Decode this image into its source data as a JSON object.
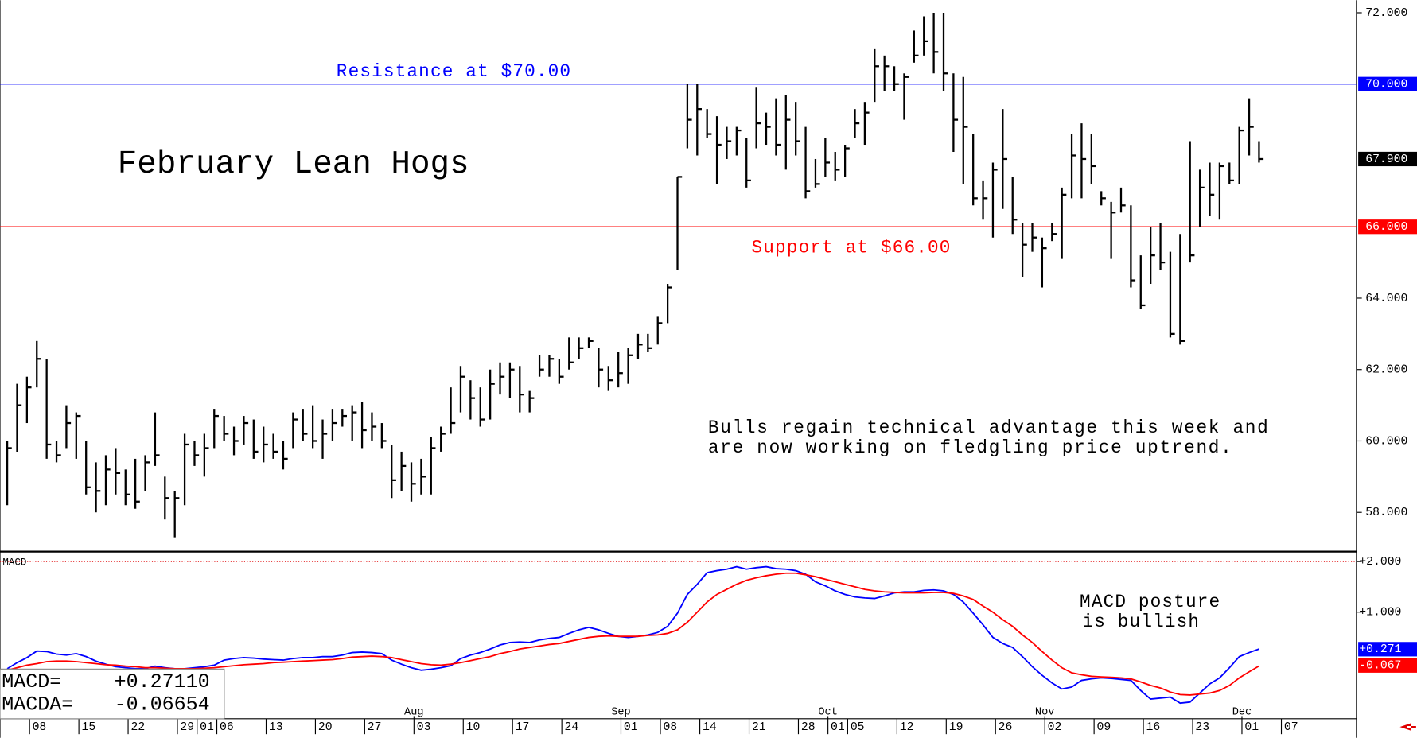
{
  "chart_data": [
    {
      "type": "ohlc",
      "title": "February Lean Hogs",
      "color": "#000000",
      "high": [
        60,
        61.6,
        61.8,
        62.8,
        62.3,
        60.0,
        61.0,
        60.8,
        60.0,
        59.4,
        59.6,
        59.8,
        59.2,
        59.5,
        59.6,
        60.8,
        59.0,
        58.6,
        60.2,
        60.0,
        60.2,
        60.9,
        60.7,
        60.4,
        60.7,
        60.6,
        60.4,
        60.2,
        60.0,
        60.8,
        60.9,
        61.0,
        60.6,
        60.9,
        60.9,
        61.0,
        61.1,
        60.8,
        60.5,
        59.9,
        59.7,
        59.4,
        59.5,
        60.1,
        60.4,
        61.5,
        62.1,
        61.7,
        61.5,
        62.0,
        62.2,
        62.2,
        62.1,
        61.4,
        62.4,
        62.4,
        62.3,
        62.9,
        62.9,
        62.9,
        62.6,
        62.1,
        62.5,
        62.6,
        63.0,
        63.0,
        63.5,
        64.4,
        67.4,
        70.0,
        70.0,
        69.3,
        69.1,
        68.8,
        68.8,
        68.5,
        69.9,
        69.2,
        69.6,
        69.7,
        69.5,
        68.8,
        67.9,
        68.5,
        68.1,
        68.3,
        69.3,
        69.5,
        71.0,
        70.8,
        70.5,
        70.3,
        71.5,
        71.9,
        72.0,
        72.0,
        70.3,
        70.2,
        68.6,
        67.3,
        67.8,
        69.3,
        67.4,
        66.1,
        66.1,
        65.7,
        66.1,
        67.1,
        68.6,
        68.9,
        68.6,
        67.0,
        66.7,
        67.1,
        66.6,
        65.2,
        66.0,
        66.1,
        65.3,
        65.8,
        68.4,
        67.6,
        67.8,
        67.8,
        67.8,
        68.8,
        69.6,
        68.4
      ],
      "low": [
        58.2,
        59.7,
        60.5,
        61.5,
        59.5,
        59.4,
        59.8,
        59.5,
        58.5,
        58.0,
        58.2,
        58.5,
        58.2,
        58.1,
        58.6,
        59.3,
        57.8,
        57.3,
        58.2,
        59.3,
        59.0,
        59.8,
        60.0,
        59.6,
        59.9,
        59.5,
        59.4,
        59.5,
        59.2,
        59.8,
        60.0,
        59.8,
        59.5,
        60.0,
        60.4,
        60.0,
        59.8,
        60.0,
        59.8,
        58.4,
        58.6,
        58.3,
        58.5,
        58.5,
        59.7,
        60.2,
        60.8,
        60.6,
        60.4,
        60.6,
        61.3,
        61.2,
        60.8,
        60.8,
        61.8,
        61.8,
        61.6,
        62.0,
        62.3,
        62.6,
        61.5,
        61.4,
        61.5,
        61.6,
        62.3,
        62.5,
        62.7,
        63.3,
        64.8,
        68.2,
        68.0,
        68.5,
        67.2,
        67.9,
        68.0,
        67.1,
        68.2,
        68.3,
        68.0,
        67.6,
        68.0,
        66.8,
        67.1,
        67.4,
        67.3,
        67.4,
        68.5,
        68.3,
        69.5,
        69.8,
        69.8,
        69.0,
        70.6,
        70.8,
        70.3,
        69.8,
        68.1,
        67.2,
        66.6,
        66.2,
        65.7,
        66.5,
        65.8,
        64.6,
        65.3,
        64.3,
        65.6,
        65.1,
        66.8,
        66.8,
        67.2,
        66.6,
        65.1,
        66.4,
        64.3,
        63.7,
        64.4,
        64.8,
        62.9,
        62.7,
        65.0,
        66.0,
        66.3,
        66.2,
        67.2,
        67.2,
        68.0,
        67.8
      ],
      "close": [
        59.8,
        61.0,
        61.5,
        62.3,
        59.9,
        59.6,
        60.5,
        60.7,
        58.7,
        58.6,
        59.2,
        59.1,
        58.5,
        58.3,
        59.4,
        59.6,
        58.4,
        58.4,
        59.9,
        59.6,
        59.8,
        60.7,
        60.2,
        60.0,
        60.5,
        59.7,
        59.9,
        59.7,
        59.5,
        60.6,
        60.2,
        60.0,
        60.2,
        60.5,
        60.7,
        60.8,
        60.3,
        60.4,
        60.0,
        58.9,
        59.3,
        58.8,
        59.0,
        59.8,
        60.2,
        60.5,
        61.8,
        61.2,
        60.6,
        61.6,
        61.8,
        62.0,
        61.3,
        61.2,
        62.0,
        62.3,
        61.8,
        62.2,
        62.6,
        62.8,
        62.0,
        61.7,
        61.9,
        62.4,
        62.7,
        62.6,
        63.3,
        64.3,
        67.4,
        69.0,
        69.3,
        68.6,
        68.3,
        68.4,
        68.7,
        67.3,
        68.9,
        68.8,
        68.3,
        69.0,
        68.4,
        67.0,
        67.2,
        67.8,
        67.6,
        68.2,
        68.9,
        69.2,
        70.5,
        70.5,
        70.0,
        70.2,
        70.8,
        71.2,
        70.9,
        70.3,
        69.0,
        68.8,
        66.8,
        66.8,
        67.6,
        67.9,
        66.2,
        65.5,
        65.7,
        65.4,
        65.8,
        66.9,
        68.0,
        67.9,
        67.7,
        66.8,
        66.4,
        66.6,
        64.5,
        63.8,
        65.2,
        65.0,
        63.0,
        62.8,
        65.2,
        67.1,
        66.9,
        67.7,
        67.3,
        68.7,
        68.8,
        67.9
      ],
      "last_close_label": "67.900",
      "ylim": [
        56.9,
        72.35
      ],
      "yticks": [
        {
          "value": 58,
          "label": "58.000"
        },
        {
          "value": 60,
          "label": "60.000"
        },
        {
          "value": 62,
          "label": "62.000"
        },
        {
          "value": 64,
          "label": "64.000"
        },
        {
          "value": 72,
          "label": "72.000"
        }
      ],
      "levels": [
        {
          "value": 70,
          "label": "Resistance at $70.00",
          "axis_label": "70.000",
          "color": "#0000ff"
        },
        {
          "value": 66,
          "label": "Support at $66.00",
          "axis_label": "66.000",
          "color": "#ff0000"
        }
      ],
      "annotation": [
        "Bulls regain technical advantage this week and",
        "are now working on fledgling price uptrend."
      ],
      "xticks": [
        {
          "value": 3,
          "label": "08"
        },
        {
          "value": 8,
          "label": "15"
        },
        {
          "value": 13,
          "label": "22"
        },
        {
          "value": 18,
          "label": "29"
        },
        {
          "value": 20,
          "label": "01"
        },
        {
          "value": 22,
          "label": "06"
        },
        {
          "value": 27,
          "label": "13"
        },
        {
          "value": 32,
          "label": "20"
        },
        {
          "value": 37,
          "label": "27"
        },
        {
          "value": 42,
          "label": "03"
        },
        {
          "value": 47,
          "label": "10"
        },
        {
          "value": 52,
          "label": "17"
        },
        {
          "value": 57,
          "label": "24"
        },
        {
          "value": 63,
          "label": "01"
        },
        {
          "value": 67,
          "label": "08"
        },
        {
          "value": 71,
          "label": "14"
        },
        {
          "value": 76,
          "label": "21"
        },
        {
          "value": 81,
          "label": "28"
        },
        {
          "value": 84,
          "label": "01"
        },
        {
          "value": 86,
          "label": "05"
        },
        {
          "value": 91,
          "label": "12"
        },
        {
          "value": 96,
          "label": "19"
        },
        {
          "value": 101,
          "label": "26"
        },
        {
          "value": 106,
          "label": "02"
        },
        {
          "value": 111,
          "label": "09"
        },
        {
          "value": 116,
          "label": "16"
        },
        {
          "value": 121,
          "label": "23"
        },
        {
          "value": 126,
          "label": "01"
        },
        {
          "value": 130,
          "label": "07"
        }
      ],
      "month_ticks": [
        {
          "value": 42,
          "label": "Aug"
        },
        {
          "value": 63,
          "label": "Sep"
        },
        {
          "value": 84,
          "label": "Oct"
        },
        {
          "value": 106,
          "label": "Nov"
        },
        {
          "value": 126,
          "label": "Dec"
        }
      ]
    },
    {
      "type": "macd",
      "title": "MACD",
      "series": [
        {
          "name": "MACD",
          "color": "#0000ff",
          "last_label": "+0.271",
          "values": [
            -0.12,
            0.0,
            0.1,
            0.23,
            0.22,
            0.17,
            0.15,
            0.18,
            0.12,
            0.03,
            -0.03,
            -0.08,
            -0.1,
            -0.12,
            -0.12,
            -0.07,
            -0.1,
            -0.12,
            -0.12,
            -0.1,
            -0.08,
            -0.05,
            0.05,
            0.08,
            0.1,
            0.09,
            0.07,
            0.06,
            0.05,
            0.08,
            0.1,
            0.1,
            0.12,
            0.12,
            0.15,
            0.2,
            0.21,
            0.2,
            0.18,
            0.05,
            -0.03,
            -0.1,
            -0.15,
            -0.13,
            -0.1,
            -0.06,
            0.08,
            0.15,
            0.2,
            0.27,
            0.35,
            0.4,
            0.41,
            0.4,
            0.45,
            0.48,
            0.5,
            0.58,
            0.65,
            0.7,
            0.65,
            0.58,
            0.52,
            0.5,
            0.52,
            0.55,
            0.6,
            0.72,
            0.98,
            1.35,
            1.55,
            1.78,
            1.82,
            1.85,
            1.9,
            1.85,
            1.88,
            1.9,
            1.86,
            1.85,
            1.82,
            1.75,
            1.6,
            1.52,
            1.42,
            1.35,
            1.3,
            1.28,
            1.27,
            1.32,
            1.38,
            1.4,
            1.4,
            1.43,
            1.44,
            1.42,
            1.35,
            1.2,
            0.98,
            0.75,
            0.5,
            0.38,
            0.3,
            0.12,
            -0.08,
            -0.25,
            -0.4,
            -0.52,
            -0.48,
            -0.35,
            -0.32,
            -0.3,
            -0.31,
            -0.33,
            -0.35,
            -0.55,
            -0.72,
            -0.7,
            -0.68,
            -0.8,
            -0.78,
            -0.6,
            -0.42,
            -0.3,
            -0.1,
            0.12,
            0.2,
            0.2711
          ]
        },
        {
          "name": "MACDA",
          "color": "#ff0000",
          "last_label": "-0.067",
          "values": [
            -0.15,
            -0.1,
            -0.05,
            -0.02,
            0.02,
            0.03,
            0.03,
            0.02,
            0.0,
            -0.02,
            -0.04,
            -0.05,
            -0.07,
            -0.08,
            -0.1,
            -0.1,
            -0.11,
            -0.12,
            -0.12,
            -0.12,
            -0.11,
            -0.1,
            -0.08,
            -0.06,
            -0.04,
            -0.03,
            -0.02,
            0.0,
            0.01,
            0.02,
            0.03,
            0.04,
            0.05,
            0.06,
            0.08,
            0.11,
            0.12,
            0.13,
            0.12,
            0.1,
            0.06,
            0.02,
            -0.02,
            -0.04,
            -0.05,
            -0.03,
            0.0,
            0.04,
            0.08,
            0.12,
            0.18,
            0.22,
            0.27,
            0.3,
            0.33,
            0.36,
            0.38,
            0.42,
            0.46,
            0.5,
            0.52,
            0.53,
            0.52,
            0.52,
            0.52,
            0.54,
            0.55,
            0.58,
            0.65,
            0.8,
            1.0,
            1.2,
            1.35,
            1.45,
            1.55,
            1.63,
            1.68,
            1.72,
            1.75,
            1.77,
            1.77,
            1.74,
            1.7,
            1.65,
            1.6,
            1.55,
            1.5,
            1.45,
            1.42,
            1.4,
            1.39,
            1.38,
            1.38,
            1.38,
            1.39,
            1.39,
            1.37,
            1.32,
            1.25,
            1.12,
            1.0,
            0.85,
            0.72,
            0.55,
            0.4,
            0.22,
            0.05,
            -0.1,
            -0.2,
            -0.24,
            -0.27,
            -0.28,
            -0.29,
            -0.3,
            -0.32,
            -0.38,
            -0.45,
            -0.5,
            -0.58,
            -0.63,
            -0.64,
            -0.62,
            -0.6,
            -0.55,
            -0.45,
            -0.3,
            -0.18,
            -0.06654
          ]
        }
      ],
      "ylim": [
        -1.11,
        2.18
      ],
      "yticks": [
        {
          "value": 2,
          "label": "+2.000"
        },
        {
          "value": 1,
          "label": "+1.000"
        }
      ],
      "annotation": [
        "MACD posture",
        "is bullish"
      ],
      "readout": [
        {
          "label": "MACD=",
          "value": "+0.27110"
        },
        {
          "label": "MACDA=",
          "value": "-0.06654"
        }
      ]
    }
  ]
}
